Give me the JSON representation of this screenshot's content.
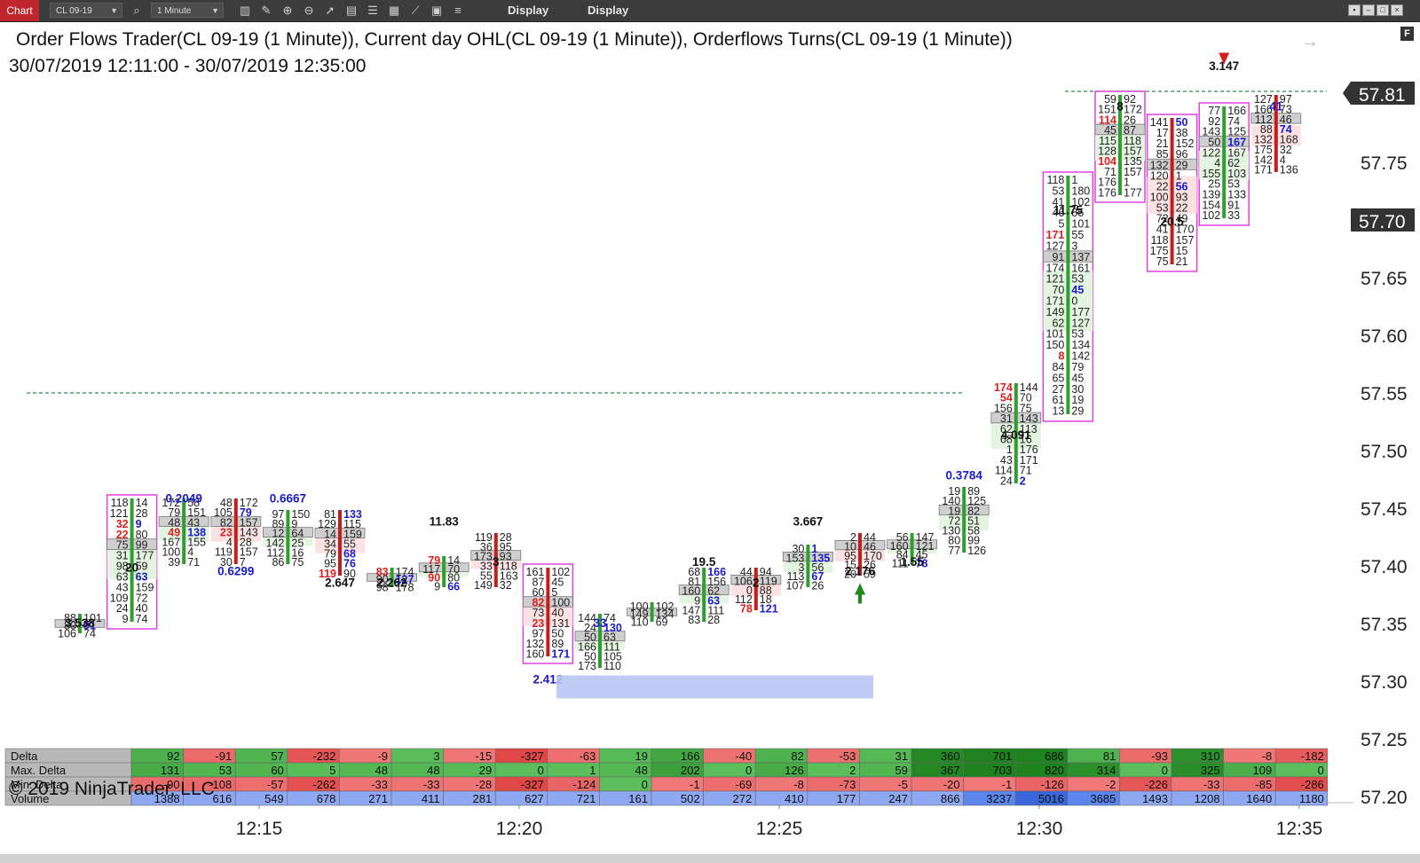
{
  "toolbar": {
    "tab_label": "Chart",
    "instrument": "CL 09-19",
    "interval": "1 Minute",
    "display_label_1": "Display",
    "display_label_2": "Display",
    "icons": [
      "search-icon",
      "bar-type-icon",
      "pencil-icon",
      "zoom-in-icon",
      "zoom-out-icon",
      "pointer-icon",
      "data-box-icon",
      "properties-icon",
      "strategies-icon",
      "indicators-icon",
      "templates-icon",
      "list-icon"
    ]
  },
  "chart": {
    "title": "Order Flows Trader(CL 09-19 (1 Minute)), Current day OHL(CL 09-19 (1 Minute)),  Orderflows Turns(CL 09-19 (1 Minute))",
    "date_range": "30/07/2019 12:11:00 - 30/07/2019 12:35:00",
    "copyright": "© 2019 NinjaTrader, LLC",
    "current_price": "57.81",
    "price_axis": [
      "57.75",
      "57.70",
      "57.65",
      "57.60",
      "57.55",
      "57.50",
      "57.45",
      "57.40",
      "57.35",
      "57.30",
      "57.25",
      "57.20"
    ],
    "time_axis": [
      "12:15",
      "12:20",
      "12:25",
      "12:30",
      "12:35"
    ],
    "colors": {
      "bid": "#e02020",
      "ask": "#1a1ad0",
      "up": "#2e9e2e",
      "down": "#c41d1d",
      "box": "#e040e0",
      "open_line": "#2e8b57",
      "poc_fill": "#cfcfcf"
    }
  },
  "chart_data": {
    "type": "table",
    "stats_rows": [
      "Delta",
      "Max. Delta",
      "Min. Delta",
      "Volume"
    ],
    "delta": [
      92,
      -91,
      57,
      -232,
      -9,
      3,
      -15,
      -327,
      -63,
      19,
      166,
      -40,
      82,
      -53,
      31,
      360,
      701,
      686,
      81,
      -93,
      310,
      -8,
      -182
    ],
    "max_delta": [
      131,
      53,
      60,
      5,
      48,
      48,
      29,
      0,
      1,
      48,
      202,
      0,
      126,
      2,
      59,
      367,
      703,
      820,
      314,
      0,
      325,
      109,
      0
    ],
    "min_delta": [
      -90,
      -108,
      -57,
      -262,
      -33,
      -33,
      -28,
      -327,
      -124,
      0,
      -1,
      -69,
      -8,
      -73,
      -5,
      -20,
      -1,
      -126,
      -2,
      -226,
      -33,
      -85,
      -286
    ],
    "volume": [
      1388,
      616,
      549,
      678,
      271,
      411,
      281,
      627,
      721,
      161,
      502,
      272,
      410,
      177,
      247,
      866,
      3237,
      5016,
      3685,
      1493,
      1208,
      1640,
      1180
    ],
    "labels": [
      {
        "text": "3.538",
        "x": "12:12",
        "y": 57.347,
        "c": "k"
      },
      {
        "text": "20",
        "x": "12:13",
        "y": 57.395,
        "c": "k"
      },
      {
        "text": "0.2049",
        "x": "12:14",
        "y": 57.455,
        "c": "b"
      },
      {
        "text": "0.6667",
        "x": "12:16",
        "y": 57.455,
        "c": "b"
      },
      {
        "text": "0.6299",
        "x": "12:15",
        "y": 57.392,
        "c": "b"
      },
      {
        "text": "2.647",
        "x": "12:17",
        "y": 57.382,
        "c": "k"
      },
      {
        "text": "2.262",
        "x": "12:18",
        "y": 57.382,
        "c": "k"
      },
      {
        "text": "11.83",
        "x": "12:19",
        "y": 57.435,
        "c": "k"
      },
      {
        "text": "3",
        "x": "12:20",
        "y": 57.4,
        "c": "k"
      },
      {
        "text": "2.412",
        "x": "12:21",
        "y": 57.298,
        "c": "b"
      },
      {
        "text": "33",
        "x": "12:22",
        "y": 57.347,
        "c": "b"
      },
      {
        "text": "19.5",
        "x": "12:24",
        "y": 57.4,
        "c": "k"
      },
      {
        "text": "2",
        "x": "12:25",
        "y": 57.382,
        "c": "k"
      },
      {
        "text": "3.667",
        "x": "12:26",
        "y": 57.435,
        "c": "k"
      },
      {
        "text": "2.176",
        "x": "12:27",
        "y": 57.392,
        "c": "k"
      },
      {
        "text": "1.55",
        "x": "12:28",
        "y": 57.4,
        "c": "k"
      },
      {
        "text": "0.3784",
        "x": "12:29",
        "y": 57.475,
        "c": "b"
      },
      {
        "text": "4.091",
        "x": "12:30",
        "y": 57.51,
        "c": "k"
      },
      {
        "text": "11.75",
        "x": "12:31",
        "y": 57.705,
        "c": "k"
      },
      {
        "text": "8",
        "x": "12:32",
        "y": 57.795,
        "c": "k"
      },
      {
        "text": "20.5",
        "x": "12:33",
        "y": 57.695,
        "c": "k"
      },
      {
        "text": "3.147",
        "x": "12:34",
        "y": 57.83,
        "c": "k"
      },
      {
        "text": "41",
        "x": "12:35",
        "y": 57.795,
        "c": "b"
      }
    ]
  }
}
